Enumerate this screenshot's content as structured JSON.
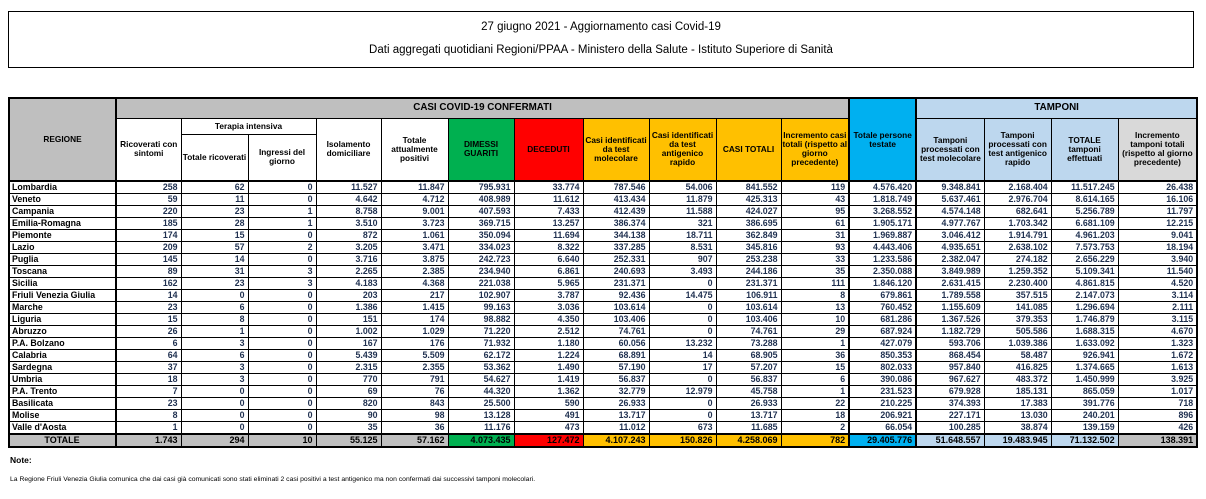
{
  "title": {
    "line1": "27 giugno 2021 - Aggiornamento casi Covid-19",
    "line2": "Dati aggregati quotidiani Regioni/PPAA - Ministero della Salute - Istituto Superiore di Sanità"
  },
  "table": {
    "group_headers": {
      "confermati": "CASI COVID-19 CONFERMATI",
      "tamponi": "TAMPONI",
      "terapia_intensiva": "Terapia intensiva"
    },
    "columns": {
      "regione": "REGIONE",
      "ricoverati_con_sintomi": "Ricoverati con sintomi",
      "totale_ricoverati": "Totale ricoverati",
      "ingressi_del_giorno": "Ingressi del giorno",
      "isolamento_domiciliare": "Isolamento domiciliare",
      "totale_attualmente_positivi": "Totale attualmente positivi",
      "dimessi_guariti": "DIMESSI GUARITI",
      "deceduti": "DECEDUTI",
      "casi_test_molecolare": "Casi identificati da test molecolare",
      "casi_test_antigenico": "Casi identificati da test antigenico rapido",
      "casi_totali": "CASI TOTALI",
      "incremento_casi": "Incremento casi totali (rispetto al giorno precedente)",
      "totale_persone_testate": "Totale persone testate",
      "tamponi_molecolare": "Tamponi processati con test molecolare",
      "tamponi_antigenico": "Tamponi processati con test antigenico rapido",
      "totale_tamponi": "TOTALE tamponi effettuati",
      "incremento_tamponi": "Incremento tamponi totali (rispetto al giorno precedente)"
    },
    "regions": [
      [
        "Lombardia",
        "258",
        "62",
        "0",
        "11.527",
        "11.847",
        "795.931",
        "33.774",
        "787.546",
        "54.006",
        "841.552",
        "119",
        "4.576.420",
        "9.348.841",
        "2.168.404",
        "11.517.245",
        "26.438"
      ],
      [
        "Veneto",
        "59",
        "11",
        "0",
        "4.642",
        "4.712",
        "408.989",
        "11.612",
        "413.434",
        "11.879",
        "425.313",
        "43",
        "1.818.749",
        "5.637.461",
        "2.976.704",
        "8.614.165",
        "16.106"
      ],
      [
        "Campania",
        "220",
        "23",
        "1",
        "8.758",
        "9.001",
        "407.593",
        "7.433",
        "412.439",
        "11.588",
        "424.027",
        "95",
        "3.268.552",
        "4.574.148",
        "682.641",
        "5.256.789",
        "11.797"
      ],
      [
        "Emilia-Romagna",
        "185",
        "28",
        "1",
        "3.510",
        "3.723",
        "369.715",
        "13.257",
        "386.374",
        "321",
        "386.695",
        "61",
        "1.905.171",
        "4.977.767",
        "1.703.342",
        "6.681.109",
        "12.215"
      ],
      [
        "Piemonte",
        "174",
        "15",
        "0",
        "872",
        "1.061",
        "350.094",
        "11.694",
        "344.138",
        "18.711",
        "362.849",
        "31",
        "1.969.887",
        "3.046.412",
        "1.914.791",
        "4.961.203",
        "9.041"
      ],
      [
        "Lazio",
        "209",
        "57",
        "2",
        "3.205",
        "3.471",
        "334.023",
        "8.322",
        "337.285",
        "8.531",
        "345.816",
        "93",
        "4.443.406",
        "4.935.651",
        "2.638.102",
        "7.573.753",
        "18.194"
      ],
      [
        "Puglia",
        "145",
        "14",
        "0",
        "3.716",
        "3.875",
        "242.723",
        "6.640",
        "252.331",
        "907",
        "253.238",
        "33",
        "1.233.586",
        "2.382.047",
        "274.182",
        "2.656.229",
        "3.940"
      ],
      [
        "Toscana",
        "89",
        "31",
        "3",
        "2.265",
        "2.385",
        "234.940",
        "6.861",
        "240.693",
        "3.493",
        "244.186",
        "35",
        "2.350.088",
        "3.849.989",
        "1.259.352",
        "5.109.341",
        "11.540"
      ],
      [
        "Sicilia",
        "162",
        "23",
        "3",
        "4.183",
        "4.368",
        "221.038",
        "5.965",
        "231.371",
        "0",
        "231.371",
        "111",
        "1.846.120",
        "2.631.415",
        "2.230.400",
        "4.861.815",
        "4.520"
      ],
      [
        "Friuli Venezia Giulia",
        "14",
        "0",
        "0",
        "203",
        "217",
        "102.907",
        "3.787",
        "92.436",
        "14.475",
        "106.911",
        "8",
        "679.861",
        "1.789.558",
        "357.515",
        "2.147.073",
        "3.114"
      ],
      [
        "Marche",
        "23",
        "6",
        "0",
        "1.386",
        "1.415",
        "99.163",
        "3.036",
        "103.614",
        "0",
        "103.614",
        "13",
        "760.452",
        "1.155.609",
        "141.085",
        "1.296.694",
        "2.111"
      ],
      [
        "Liguria",
        "15",
        "8",
        "0",
        "151",
        "174",
        "98.882",
        "4.350",
        "103.406",
        "0",
        "103.406",
        "10",
        "681.286",
        "1.367.526",
        "379.353",
        "1.746.879",
        "3.115"
      ],
      [
        "Abruzzo",
        "26",
        "1",
        "0",
        "1.002",
        "1.029",
        "71.220",
        "2.512",
        "74.761",
        "0",
        "74.761",
        "29",
        "687.924",
        "1.182.729",
        "505.586",
        "1.688.315",
        "4.670"
      ],
      [
        "P.A. Bolzano",
        "6",
        "3",
        "0",
        "167",
        "176",
        "71.932",
        "1.180",
        "60.056",
        "13.232",
        "73.288",
        "1",
        "427.079",
        "593.706",
        "1.039.386",
        "1.633.092",
        "1.323"
      ],
      [
        "Calabria",
        "64",
        "6",
        "0",
        "5.439",
        "5.509",
        "62.172",
        "1.224",
        "68.891",
        "14",
        "68.905",
        "36",
        "850.353",
        "868.454",
        "58.487",
        "926.941",
        "1.672"
      ],
      [
        "Sardegna",
        "37",
        "3",
        "0",
        "2.315",
        "2.355",
        "53.362",
        "1.490",
        "57.190",
        "17",
        "57.207",
        "15",
        "802.033",
        "957.840",
        "416.825",
        "1.374.665",
        "1.613"
      ],
      [
        "Umbria",
        "18",
        "3",
        "0",
        "770",
        "791",
        "54.627",
        "1.419",
        "56.837",
        "0",
        "56.837",
        "6",
        "390.086",
        "967.627",
        "483.372",
        "1.450.999",
        "3.925"
      ],
      [
        "P.A. Trento",
        "7",
        "0",
        "0",
        "69",
        "76",
        "44.320",
        "1.362",
        "32.779",
        "12.979",
        "45.758",
        "1",
        "231.523",
        "679.928",
        "185.131",
        "865.059",
        "1.017"
      ],
      [
        "Basilicata",
        "23",
        "0",
        "0",
        "820",
        "843",
        "25.500",
        "590",
        "26.933",
        "0",
        "26.933",
        "22",
        "210.225",
        "374.393",
        "17.383",
        "391.776",
        "718"
      ],
      [
        "Molise",
        "8",
        "0",
        "0",
        "90",
        "98",
        "13.128",
        "491",
        "13.717",
        "0",
        "13.717",
        "18",
        "206.921",
        "227.171",
        "13.030",
        "240.201",
        "896"
      ],
      [
        "Valle d'Aosta",
        "1",
        "0",
        "0",
        "35",
        "36",
        "11.176",
        "473",
        "11.012",
        "673",
        "11.685",
        "2",
        "66.054",
        "100.285",
        "38.874",
        "139.159",
        "426"
      ]
    ],
    "total_row": [
      "TOTALE",
      "1.743",
      "294",
      "10",
      "55.125",
      "57.162",
      "4.073.435",
      "127.472",
      "4.107.243",
      "150.826",
      "4.258.069",
      "782",
      "29.405.776",
      "51.648.557",
      "19.483.945",
      "71.132.502",
      "138.391"
    ]
  },
  "notes": {
    "label": "Note:",
    "line1": "La Regione Friuli Venezia Giulia comunica che dai casi già comunicati sono stati eliminati 2 casi positivi a test antigenico ma non confermati dai successivi tamponi molecolari."
  },
  "colors": {
    "header_gray": "#bfbfbf",
    "header_light_gray": "#d9d9d9",
    "green": "#00b050",
    "red": "#ff0000",
    "yellow": "#ffc000",
    "cyan": "#00b0f0",
    "light_blue": "#bdd7ee",
    "number_text": "#1f3050"
  }
}
